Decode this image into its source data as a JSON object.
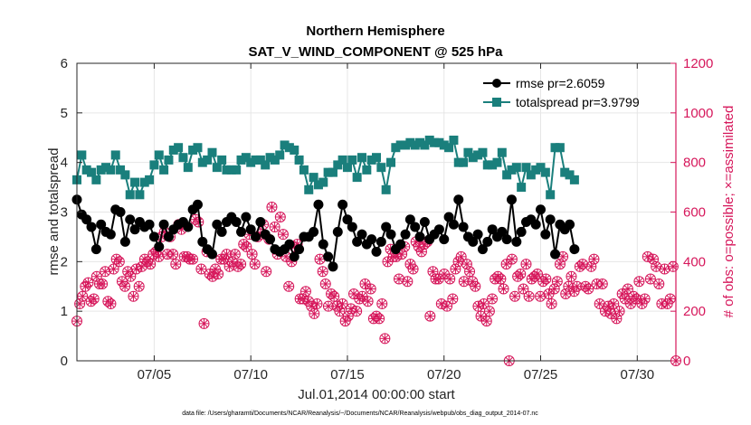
{
  "title": "Northern Hemisphere",
  "subtitle": "SAT_V_WIND_COMPONENT @ 525 hPa",
  "footer": "data file: /Users/gharamti/Documents/NCAR/Reanalysis/~/Documents/NCAR/Reanalysis/webpub/obs_diag_output_2014-07.nc",
  "colors": {
    "rmse": "#000000",
    "spread": "#1a7f7c",
    "obs": "#d6175b",
    "axis": "#262626",
    "grid": "#e6e6e6"
  },
  "chart_data": {
    "type": "line",
    "title": "Northern Hemisphere",
    "subtitle": "SAT_V_WIND_COMPONENT @ 525 hPa",
    "xlabel": "Jul.01,2014 00:00:00 start",
    "ylabel": "rmse and totalspread",
    "y2label": "# of obs: o=possible; ×=assimilated",
    "xlim": [
      1,
      32
    ],
    "ylim": [
      0,
      6
    ],
    "y2lim": [
      0,
      1200
    ],
    "xticks": [
      5,
      10,
      15,
      20,
      25,
      30
    ],
    "xtick_labels": [
      "07/05",
      "07/10",
      "07/15",
      "07/20",
      "07/25",
      "07/30"
    ],
    "yticks": [
      0,
      1,
      2,
      3,
      4,
      5,
      6
    ],
    "ytick_labels": [
      "0",
      "1",
      "2",
      "3",
      "4",
      "5",
      "6"
    ],
    "y2ticks": [
      0,
      200,
      400,
      600,
      800,
      1000,
      1200
    ],
    "y2tick_labels": [
      "0",
      "200",
      "400",
      "600",
      "800",
      "1000",
      "1200"
    ],
    "x_start": 1.0,
    "x_step": 0.25,
    "series": [
      {
        "name": "rmse",
        "label": "rmse pr=2.6059",
        "marker": "circle",
        "values": [
          3.25,
          2.95,
          2.85,
          2.7,
          2.25,
          2.75,
          2.6,
          2.55,
          3.05,
          3.0,
          2.4,
          2.85,
          2.65,
          2.8,
          2.7,
          2.75,
          2.5,
          2.3,
          2.75,
          2.5,
          2.65,
          2.75,
          2.8,
          2.7,
          3.05,
          3.15,
          2.4,
          2.25,
          2.15,
          2.75,
          2.6,
          2.8,
          2.9,
          2.8,
          2.6,
          2.9,
          2.65,
          2.5,
          2.8,
          2.55,
          2.45,
          2.25,
          2.2,
          2.25,
          2.35,
          2.1,
          2.25,
          2.5,
          2.5,
          2.6,
          3.15,
          2.35,
          2.1,
          1.9,
          2.6,
          3.15,
          2.85,
          2.7,
          2.4,
          2.55,
          2.35,
          2.45,
          2.2,
          2.4,
          2.7,
          2.55,
          2.25,
          2.35,
          2.55,
          2.85,
          2.7,
          2.5,
          2.8,
          2.45,
          2.55,
          2.65,
          2.45,
          2.9,
          2.75,
          3.25,
          2.7,
          2.5,
          2.4,
          2.55,
          2.25,
          2.4,
          2.65,
          2.5,
          2.6,
          2.45,
          3.25,
          2.4,
          2.6,
          2.8,
          2.85,
          2.75,
          3.05,
          2.55,
          2.85,
          2.15,
          2.75,
          2.65,
          2.75,
          2.25
        ],
        "color": "#000000"
      },
      {
        "name": "totalspread",
        "label": "totalspread pr=3.9799",
        "marker": "square",
        "values": [
          3.65,
          4.15,
          3.85,
          3.8,
          3.65,
          3.85,
          3.9,
          3.85,
          4.15,
          3.85,
          3.75,
          3.35,
          3.6,
          3.35,
          3.6,
          3.65,
          3.95,
          4.15,
          3.85,
          4.05,
          4.25,
          4.3,
          4.1,
          3.9,
          4.25,
          4.3,
          4.0,
          4.05,
          4.2,
          3.9,
          4.05,
          3.85,
          3.85,
          3.85,
          4.05,
          4.1,
          4.0,
          4.05,
          4.05,
          3.95,
          4.1,
          4.05,
          4.15,
          4.35,
          4.3,
          4.25,
          4.05,
          3.85,
          3.45,
          3.7,
          3.55,
          3.6,
          3.8,
          3.8,
          3.95,
          4.05,
          3.9,
          4.05,
          3.7,
          4.1,
          3.85,
          4.05,
          4.1,
          3.9,
          3.45,
          4.0,
          4.3,
          4.35,
          4.35,
          4.4,
          4.35,
          4.4,
          4.35,
          4.45,
          4.4,
          4.4,
          4.35,
          4.3,
          4.45,
          4.0,
          4.0,
          4.2,
          4.1,
          4.15,
          4.2,
          3.95,
          3.95,
          4.0,
          4.2,
          3.75,
          3.85,
          3.9,
          3.5,
          3.9,
          3.75,
          3.85,
          3.9,
          3.8,
          3.35,
          4.3,
          4.3,
          3.8,
          3.75,
          3.65
        ],
        "color": "#1a7f7c"
      },
      {
        "name": "obs",
        "label": "# of obs",
        "axis": "right",
        "marker": "circle-x",
        "values": [
          160,
          230,
          260,
          300,
          315,
          240,
          250,
          340,
          310,
          310,
          360,
          240,
          230,
          370,
          410,
          400,
          320,
          300,
          360,
          340,
          260,
          370,
          300,
          380,
          410,
          400,
          390,
          430,
          440,
          420,
          500,
          520,
          430,
          500,
          430,
          390,
          550,
          530,
          420,
          420,
          410,
          410,
          570,
          560,
          370,
          150,
          440,
          350,
          340,
          370,
          350,
          410,
          410,
          430,
          380,
          400,
          430,
          380,
          390,
          470,
          460,
          510,
          430,
          390,
          500,
          510,
          550,
          360,
          490,
          620,
          540,
          430,
          580,
          510,
          420,
          300,
          400,
          460,
          470,
          250,
          250,
          280,
          240,
          220,
          190,
          230,
          410,
          360,
          310,
          220,
          270,
          260,
          220,
          200,
          230,
          160,
          180,
          210,
          270,
          200,
          250,
          260,
          310,
          240,
          290,
          170,
          180,
          170,
          230,
          90,
          400,
          450,
          420,
          420,
          330,
          430,
          460,
          320,
          390,
          370,
          480,
          460,
          440,
          470,
          480,
          180,
          360,
          330,
          330,
          230,
          350,
          220,
          330,
          250,
          370,
          400,
          420,
          320,
          390,
          360,
          320,
          300,
          220,
          180,
          230,
          160,
          200,
          250,
          330,
          340,
          330,
          290,
          390,
          0,
          410,
          260,
          340,
          350,
          290,
          390,
          260,
          330,
          340,
          350,
          260,
          320,
          330,
          270,
          230,
          290,
          320,
          390,
          420,
          270,
          300,
          340,
          280,
          300,
          380,
          390,
          300,
          290,
          380,
          410,
          310,
          230,
          310,
          200,
          220,
          190,
          230,
          170,
          200,
          270,
          250,
          290,
          230,
          260,
          250,
          320,
          230,
          250,
          420,
          330,
          410,
          380,
          310,
          230,
          370,
          230,
          250,
          380,
          0
        ],
        "color": "#d6175b"
      }
    ],
    "legend": [
      "rmse pr=2.6059",
      "totalspread pr=3.9799"
    ],
    "legend_position": "top-right",
    "grid": true
  }
}
